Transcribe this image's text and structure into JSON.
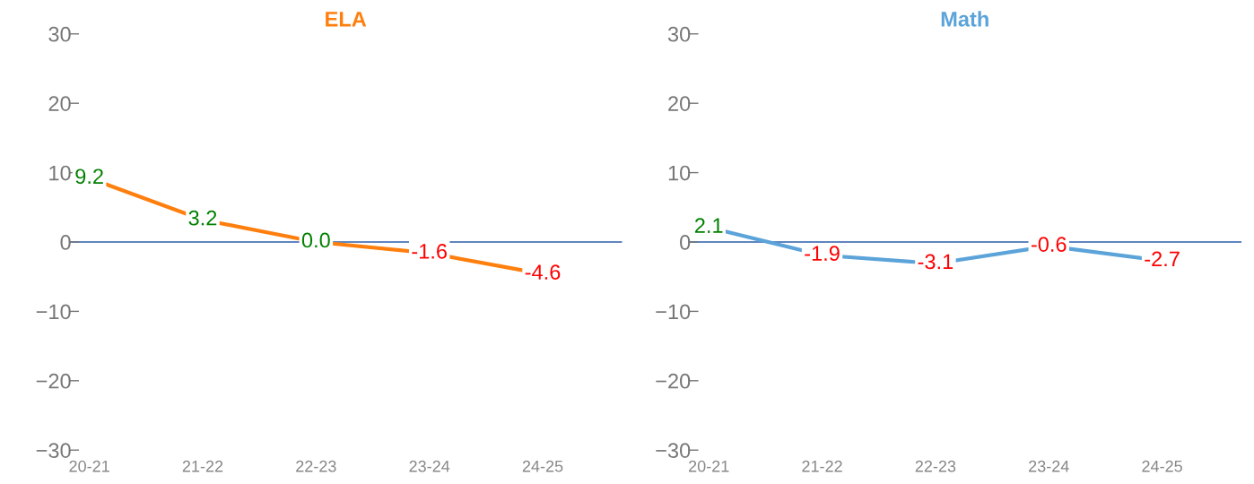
{
  "chart_data": [
    {
      "type": "line",
      "title": "ELA",
      "categories": [
        "20-21",
        "21-22",
        "22-23",
        "23-24",
        "24-25"
      ],
      "series": [
        {
          "color": "#ff7f0e",
          "values": [
            9.2,
            3.2,
            0.0,
            -1.6,
            -4.6
          ],
          "value_labels": [
            "9.2",
            "3.2",
            "0.0",
            "-1.6",
            "-4.6"
          ],
          "colors": [
            "#008000",
            "#008000",
            "#008000",
            "#ff0000",
            "#ff0000"
          ]
        }
      ],
      "ylim": [
        -30,
        30
      ],
      "yticks": [
        {
          "value": -30,
          "label": "−30"
        },
        {
          "value": -20,
          "label": "−20"
        },
        {
          "value": -10,
          "label": "−10"
        },
        0,
        10,
        20,
        30
      ],
      "ref_lines": [
        {
          "axis": "y",
          "value": 0,
          "color": "#2a5caa"
        }
      ]
    },
    {
      "type": "line",
      "title": "Math",
      "categories": [
        "20-21",
        "21-22",
        "22-23",
        "23-24",
        "24-25"
      ],
      "series": [
        {
          "color": "#5ba3d9",
          "values": [
            2.1,
            -1.9,
            -3.1,
            -0.6,
            -2.7
          ],
          "value_labels": [
            "2.1",
            "-1.9",
            "-3.1",
            "-0.6",
            "-2.7"
          ],
          "colors": [
            "#008000",
            "#ff0000",
            "#ff0000",
            "#ff0000",
            "#ff0000"
          ]
        }
      ],
      "ylim": [
        -30,
        30
      ],
      "yticks": [
        {
          "value": -30,
          "label": "−30"
        },
        {
          "value": -20,
          "label": "−20"
        },
        {
          "value": -10,
          "label": "−10"
        },
        0,
        10,
        20,
        30
      ],
      "ref_lines": [
        {
          "axis": "y",
          "value": 0,
          "color": "#2a5caa"
        }
      ]
    }
  ]
}
